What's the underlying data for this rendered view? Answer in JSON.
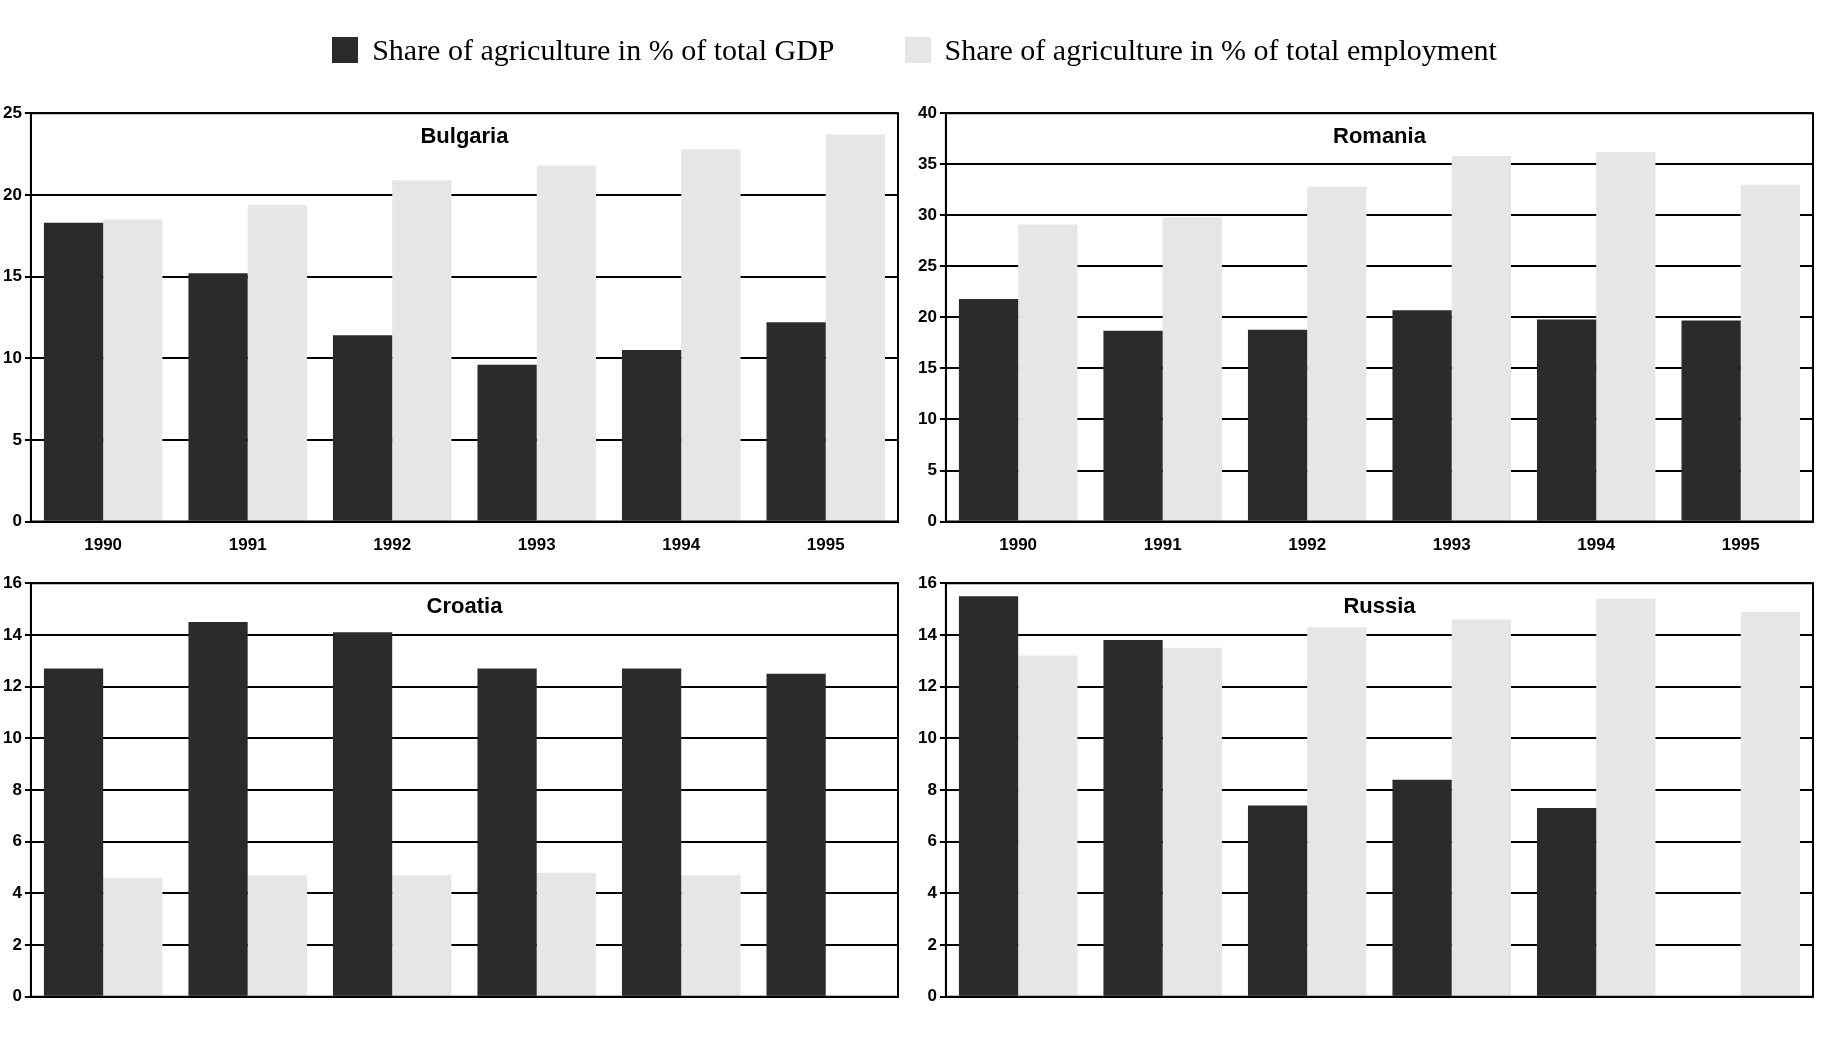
{
  "chart_data": [
    {
      "type": "bar",
      "title": "Bulgaria",
      "categories": [
        "1990",
        "1991",
        "1992",
        "1993",
        "1994",
        "1995"
      ],
      "series": [
        {
          "name": "Share of agriculture in % of total GDP",
          "color": "#2b2b2b",
          "values": [
            18.3,
            15.2,
            11.4,
            9.6,
            10.5,
            12.2
          ]
        },
        {
          "name": "Share of agriculture in % of total employment",
          "color": "#e6e6e6",
          "values": [
            18.5,
            19.4,
            20.9,
            21.8,
            22.8,
            23.7
          ]
        }
      ],
      "ylim": [
        0,
        25
      ],
      "yticks": [
        0,
        5,
        10,
        15,
        20,
        25
      ],
      "grid": "y",
      "legend": "top"
    },
    {
      "type": "bar",
      "title": "Romania",
      "categories": [
        "1990",
        "1991",
        "1992",
        "1993",
        "1994",
        "1995"
      ],
      "series": [
        {
          "color": "#2b2b2b",
          "values": [
            21.8,
            18.7,
            18.8,
            20.7,
            19.8,
            19.7
          ]
        },
        {
          "color": "#e6e6e6",
          "values": [
            29.1,
            29.8,
            32.8,
            35.8,
            36.2,
            33
          ]
        }
      ],
      "ylim": [
        0,
        40
      ],
      "yticks": [
        0,
        5,
        10,
        15,
        20,
        25,
        30,
        35,
        40
      ],
      "grid": "y"
    },
    {
      "type": "bar",
      "title": "Croatia",
      "categories": [
        null,
        null,
        null,
        null,
        null,
        null
      ],
      "series": [
        {
          "color": "#2b2b2b",
          "values": [
            12.7,
            14.5,
            14.1,
            12.7,
            12.7,
            12.5
          ]
        },
        {
          "color": "#e6e6e6",
          "values": [
            4.6,
            4.7,
            4.7,
            4.8,
            4.7,
            null
          ]
        }
      ],
      "ylim": [
        0,
        16
      ],
      "yticks": [
        0,
        2,
        4,
        6,
        8,
        10,
        12,
        14,
        16
      ],
      "grid": "y",
      "tick_labels": "y"
    },
    {
      "type": "bar",
      "title": "Russia",
      "categories": [
        null,
        null,
        null,
        null,
        null,
        null
      ],
      "series": [
        {
          "color": "#2b2b2b",
          "values": [
            15.5,
            13.8,
            7.4,
            8.4,
            7.3,
            null
          ]
        },
        {
          "color": "#e6e6e6",
          "values": [
            13.2,
            13.5,
            14.3,
            14.6,
            15.4,
            14.9
          ]
        }
      ],
      "ylim": [
        0,
        16
      ],
      "yticks": [
        0,
        2,
        4,
        6,
        8,
        10,
        12,
        14,
        16
      ],
      "grid": "y",
      "tick_labels": "y"
    }
  ]
}
